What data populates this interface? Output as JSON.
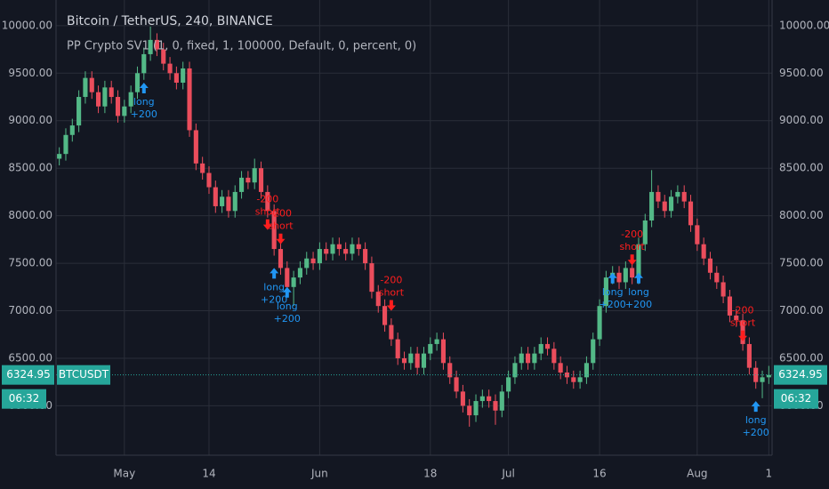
{
  "chart_data": {
    "type": "candlestick",
    "title": "Bitcoin / TetherUS, 240, BINANCE",
    "subtitle": "PP Crypto SV1 (1, 0, fixed, 1, 100000, Default, 0, percent, 0)",
    "symbol": "BTCUSDT",
    "countdown": "06:32",
    "up_color": "#53b987",
    "down_color": "#eb4d5c",
    "grid": true,
    "xlim": [
      -0.5,
      109.5
    ],
    "xticks": [
      {
        "value": 10,
        "label": "May"
      },
      {
        "value": 23,
        "label": "14"
      },
      {
        "value": 40,
        "label": "Jun"
      },
      {
        "value": 57,
        "label": "18"
      },
      {
        "value": 69,
        "label": "Jul"
      },
      {
        "value": 83,
        "label": "16"
      },
      {
        "value": 98,
        "label": "Aug"
      },
      {
        "value": 109,
        "label": "1"
      }
    ],
    "ylim": [
      5480,
      10270
    ],
    "yticks": [
      {
        "value": 6000,
        "label": "6000.00"
      },
      {
        "value": 6500,
        "label": "6500.00"
      },
      {
        "value": 7000,
        "label": "7000.00"
      },
      {
        "value": 7500,
        "label": "7500.00"
      },
      {
        "value": 8000,
        "label": "8000.00"
      },
      {
        "value": 8500,
        "label": "8500.00"
      },
      {
        "value": 9000,
        "label": "9000.00"
      },
      {
        "value": 9500,
        "label": "9500.00"
      },
      {
        "value": 10000,
        "label": "10000.00"
      }
    ],
    "open": [
      8600,
      8650,
      8850,
      8950,
      9250,
      9450,
      9300,
      9150,
      9350,
      9250,
      9050,
      9150,
      9300,
      9500,
      9700,
      9850,
      9750,
      9600,
      9500,
      9400,
      9550,
      8900,
      8550,
      8450,
      8300,
      8100,
      8200,
      8050,
      8250,
      8400,
      8350,
      8500,
      8250,
      8050,
      7650,
      7450,
      7250,
      7350,
      7450,
      7550,
      7500,
      7650,
      7600,
      7700,
      7650,
      7600,
      7700,
      7650,
      7500,
      7200,
      7050,
      6850,
      6700,
      6500,
      6450,
      6550,
      6400,
      6550,
      6650,
      6700,
      6450,
      6300,
      6150,
      6000,
      5900,
      6050,
      6100,
      6050,
      5950,
      6150,
      6300,
      6450,
      6550,
      6450,
      6550,
      6650,
      6600,
      6450,
      6350,
      6300,
      6250,
      6300,
      6450,
      6700,
      7050,
      7350,
      7400,
      7300,
      7450,
      7350,
      7700,
      7950,
      8250,
      8150,
      8050,
      8200,
      8250,
      8150,
      7900,
      7700,
      7550,
      7400,
      7300,
      7150,
      6950,
      6900,
      6650,
      6400,
      6250,
      6300
    ],
    "high": [
      8720,
      8920,
      9020,
      9320,
      9520,
      9520,
      9370,
      9420,
      9420,
      9320,
      9220,
      9370,
      9570,
      9770,
      9990,
      9920,
      9820,
      9670,
      9570,
      9620,
      9620,
      8970,
      8620,
      8520,
      8370,
      8270,
      8270,
      8320,
      8470,
      8470,
      8600,
      8570,
      8320,
      8120,
      7720,
      7520,
      7420,
      7520,
      7620,
      7620,
      7720,
      7720,
      7770,
      7770,
      7720,
      7770,
      7770,
      7720,
      7570,
      7270,
      7120,
      6920,
      6770,
      6570,
      6620,
      6620,
      6620,
      6720,
      6770,
      6770,
      6520,
      6370,
      6220,
      6070,
      6120,
      6170,
      6170,
      6120,
      6220,
      6370,
      6520,
      6620,
      6620,
      6620,
      6720,
      6720,
      6670,
      6520,
      6420,
      6370,
      6370,
      6520,
      6770,
      7120,
      7420,
      7470,
      7470,
      7520,
      7520,
      7770,
      8020,
      8480,
      8320,
      8220,
      8270,
      8320,
      8320,
      8220,
      7970,
      7770,
      7620,
      7470,
      7370,
      7220,
      7020,
      6970,
      6720,
      6470,
      6370,
      6420
    ],
    "low": [
      8530,
      8580,
      8780,
      8880,
      9180,
      9230,
      9080,
      9080,
      9180,
      8980,
      8980,
      9080,
      9230,
      9430,
      9630,
      9680,
      9530,
      9430,
      9330,
      9330,
      8830,
      8480,
      8380,
      8230,
      8030,
      8030,
      7980,
      7980,
      8180,
      8280,
      8280,
      8180,
      7980,
      7580,
      7380,
      7180,
      7050,
      7280,
      7380,
      7430,
      7430,
      7530,
      7530,
      7580,
      7530,
      7530,
      7580,
      7430,
      7130,
      6980,
      6780,
      6630,
      6430,
      6380,
      6380,
      6330,
      6330,
      6480,
      6580,
      6380,
      6230,
      6080,
      5930,
      5780,
      5830,
      5980,
      5980,
      5800,
      5880,
      6080,
      6230,
      6380,
      6380,
      6380,
      6480,
      6530,
      6380,
      6280,
      6230,
      6180,
      6180,
      6230,
      6380,
      6630,
      6980,
      7280,
      7230,
      7230,
      7280,
      7280,
      7630,
      7880,
      8080,
      7980,
      7980,
      8130,
      8080,
      7830,
      7630,
      7480,
      7330,
      7230,
      7080,
      6880,
      6830,
      6580,
      6330,
      6180,
      6080,
      6230
    ],
    "close": [
      8650,
      8850,
      8950,
      9250,
      9450,
      9300,
      9150,
      9350,
      9250,
      9050,
      9150,
      9300,
      9500,
      9700,
      9850,
      9750,
      9600,
      9500,
      9400,
      9550,
      8900,
      8550,
      8450,
      8300,
      8100,
      8200,
      8050,
      8250,
      8400,
      8350,
      8500,
      8250,
      8050,
      7650,
      7450,
      7250,
      7350,
      7450,
      7550,
      7500,
      7650,
      7600,
      7700,
      7650,
      7600,
      7700,
      7650,
      7500,
      7200,
      7050,
      6850,
      6700,
      6500,
      6450,
      6550,
      6400,
      6550,
      6650,
      6700,
      6450,
      6300,
      6150,
      6000,
      5900,
      6050,
      6100,
      6050,
      5950,
      6150,
      6300,
      6450,
      6550,
      6450,
      6550,
      6650,
      6600,
      6450,
      6350,
      6300,
      6250,
      6300,
      6450,
      6700,
      7050,
      7350,
      7400,
      7300,
      7450,
      7350,
      7700,
      7950,
      8250,
      8150,
      8050,
      8200,
      8250,
      8150,
      7900,
      7700,
      7550,
      7400,
      7300,
      7150,
      6950,
      6900,
      6650,
      6400,
      6250,
      6300,
      6324.95
    ],
    "signals": [
      {
        "x": 13,
        "price": 9400,
        "label": "long",
        "amount": "+200",
        "color": "#2196f3"
      },
      {
        "x": 32,
        "price": 7850,
        "label": "short",
        "amount": "-200",
        "color": "#ff1e1e"
      },
      {
        "x": 34,
        "price": 7700,
        "label": "short",
        "amount": "-200",
        "color": "#ff1e1e"
      },
      {
        "x": 33,
        "price": 7450,
        "label": "long",
        "amount": "+200",
        "color": "#2196f3"
      },
      {
        "x": 35,
        "price": 7250,
        "label": "long",
        "amount": "+200",
        "color": "#2196f3"
      },
      {
        "x": 51,
        "price": 7000,
        "label": "short",
        "amount": "-200",
        "color": "#ff1e1e"
      },
      {
        "x": 85,
        "price": 7400,
        "label": "long",
        "amount": "+200",
        "color": "#2196f3"
      },
      {
        "x": 88,
        "price": 7480,
        "label": "short",
        "amount": "-200",
        "color": "#ff1e1e"
      },
      {
        "x": 89,
        "price": 7400,
        "label": "long",
        "amount": "+200",
        "color": "#2196f3"
      },
      {
        "x": 105,
        "price": 6680,
        "label": "short",
        "amount": "-200",
        "color": "#ff1e1e"
      },
      {
        "x": 107,
        "price": 6050,
        "label": "long",
        "amount": "+200",
        "color": "#2196f3"
      }
    ]
  }
}
